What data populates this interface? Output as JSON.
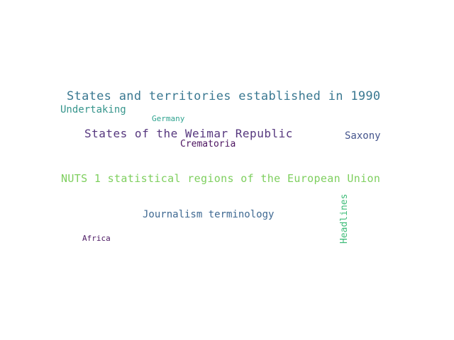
{
  "words": [
    {
      "text": "States and territories established in 1990",
      "color": "#3a7891"
    },
    {
      "text": "Undertaking",
      "color": "#36958c"
    },
    {
      "text": "Germany",
      "color": "#2fa38f"
    },
    {
      "text": "States of the Weimar Republic",
      "color": "#56377e"
    },
    {
      "text": "Saxony",
      "color": "#44548c"
    },
    {
      "text": "Crematoria",
      "color": "#4c1460"
    },
    {
      "text": "NUTS 1 statistical regions of the European Union",
      "color": "#7ecf5e"
    },
    {
      "text": "Journalism terminology",
      "color": "#3f6992"
    },
    {
      "text": "Africa",
      "color": "#4a1762"
    },
    {
      "text": "Headlines",
      "color": "#3fbc79"
    }
  ]
}
